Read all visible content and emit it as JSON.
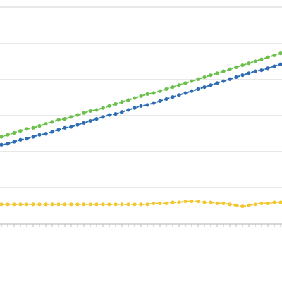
{
  "chart_data": {
    "type": "line",
    "title": "",
    "xlabel": "",
    "ylabel": "",
    "grid": true,
    "legend": "none",
    "x_tick_labels": [
      "",
      "",
      "",
      "",
      "",
      "",
      "",
      "",
      "",
      ""
    ],
    "series": [
      {
        "color": "#2e6db4",
        "marker": "circle",
        "values": [
          160,
          161,
          163,
          165,
          166,
          168,
          170,
          171,
          173,
          175,
          177,
          178,
          180,
          182,
          184,
          186,
          188,
          190,
          191,
          193,
          195,
          197,
          199,
          200,
          202,
          204,
          206,
          208,
          210,
          212,
          214,
          216,
          218,
          220,
          222,
          224,
          226,
          228,
          230,
          232,
          234,
          235,
          237,
          239,
          241
        ]
      },
      {
        "color": "#6ac04a",
        "marker": "circle",
        "values": [
          168,
          170,
          172,
          174,
          176,
          177,
          179,
          181,
          183,
          185,
          186,
          188,
          190,
          192,
          194,
          195,
          197,
          199,
          201,
          203,
          205,
          207,
          209,
          211,
          212,
          214,
          216,
          218,
          220,
          222,
          224,
          226,
          228,
          230,
          232,
          234,
          236,
          238,
          240,
          242,
          244,
          246,
          248,
          250,
          252
        ]
      },
      {
        "color": "#f2c832",
        "marker": "circle",
        "values": [
          100,
          100,
          100,
          100,
          100,
          100,
          100,
          100,
          100,
          100,
          100,
          100,
          100,
          100,
          100,
          100,
          100,
          100,
          100,
          100,
          100,
          100,
          100,
          100,
          101,
          101,
          101,
          102,
          102,
          103,
          103,
          103,
          102,
          102,
          101,
          101,
          100,
          99,
          98,
          99,
          100,
          101,
          101,
          102,
          102
        ]
      }
    ]
  }
}
